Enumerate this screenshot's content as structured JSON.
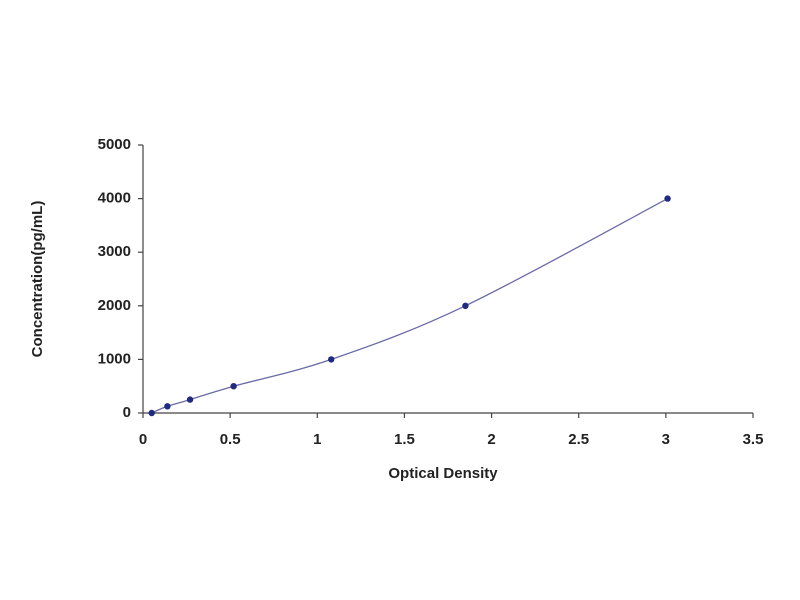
{
  "chart_data": {
    "type": "scatter",
    "x_label": "Optical Density",
    "y_label": "Concentration(pg/mL)",
    "series": [
      {
        "x": [
          0.05,
          0.14,
          0.27,
          0.52,
          1.08,
          1.85,
          3.01
        ],
        "values": [
          0,
          125,
          250,
          500,
          1000,
          2000,
          4000
        ],
        "color": "#1f2a80",
        "line_color": "#6a6aa8"
      }
    ],
    "xlim": [
      0,
      3.5
    ],
    "xticks": [
      0,
      0.5,
      1,
      1.5,
      2,
      2.5,
      3,
      3.5
    ],
    "ylim": [
      0,
      5000
    ],
    "yticks": [
      0,
      1000,
      2000,
      3000,
      4000,
      5000
    ],
    "grid": false
  }
}
